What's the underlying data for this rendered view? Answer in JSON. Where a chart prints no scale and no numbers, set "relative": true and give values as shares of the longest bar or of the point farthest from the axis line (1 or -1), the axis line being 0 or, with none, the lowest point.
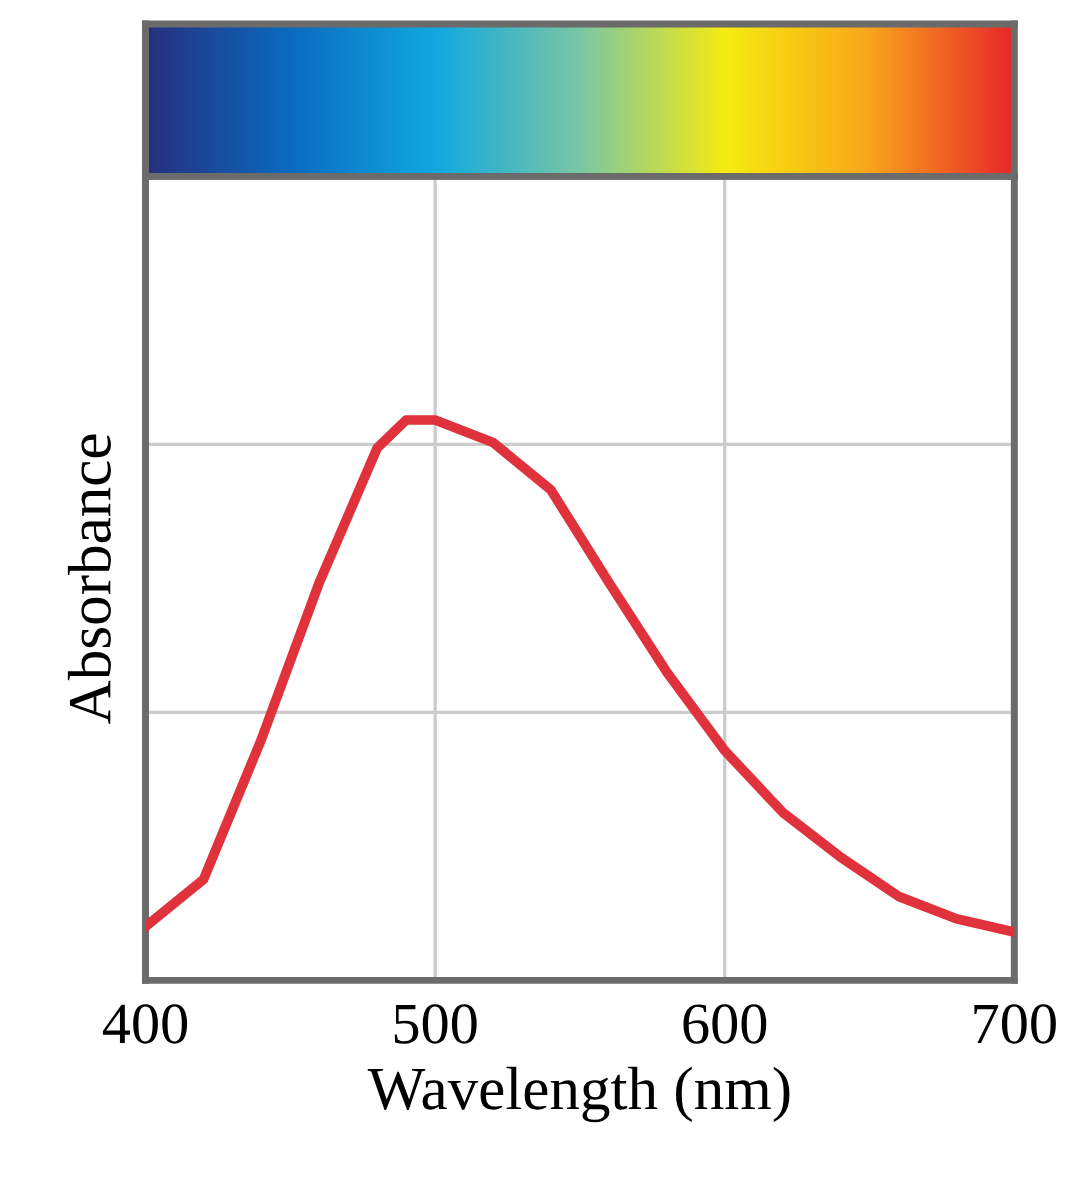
{
  "chart_data": {
    "type": "line",
    "xlabel": "Wavelength (nm)",
    "ylabel": "Absorbance",
    "relative": true,
    "xlim": [
      400,
      700
    ],
    "xticks": [
      400,
      500,
      600,
      700
    ],
    "grid": true,
    "legend": false,
    "marker": "none",
    "line_style": "solid",
    "x": [
      400,
      420,
      440,
      460,
      480,
      490,
      500,
      520,
      540,
      560,
      580,
      600,
      620,
      640,
      660,
      680,
      700
    ],
    "series": [
      {
        "color": "#e0323c",
        "values": [
          0.096,
          0.18,
          0.43,
          0.71,
          0.95,
          1.0,
          1.0,
          0.96,
          0.875,
          0.71,
          0.55,
          0.41,
          0.3,
          0.22,
          0.15,
          0.11,
          0.086
        ]
      }
    ]
  }
}
